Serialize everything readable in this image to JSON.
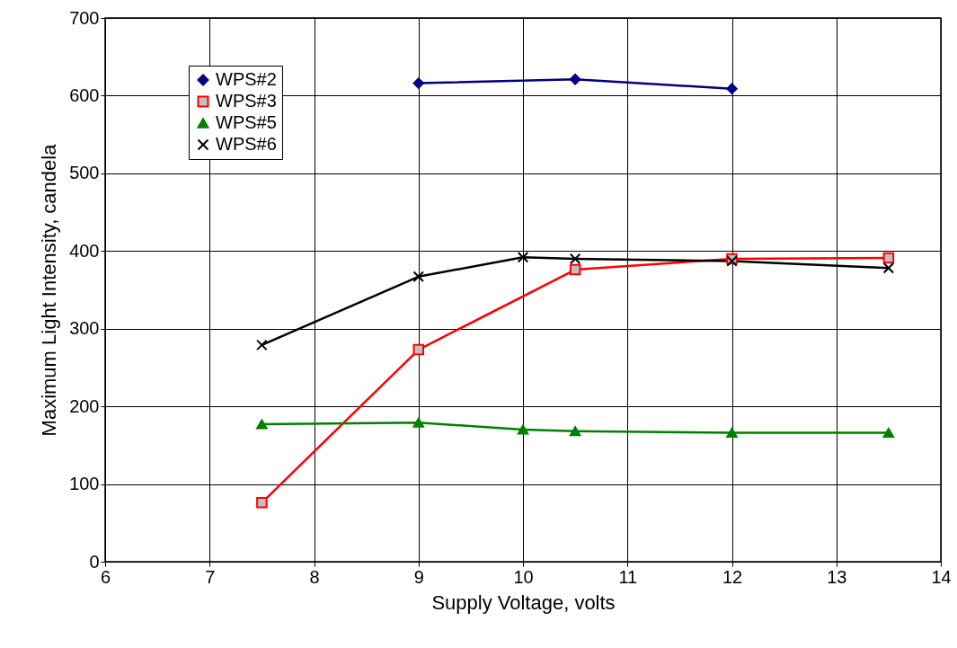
{
  "chart_data": {
    "type": "line",
    "xlabel": "Supply Voltage, volts",
    "ylabel": "Maximum Light Intensity, candela",
    "xlim": [
      6,
      14
    ],
    "xticks": [
      6,
      7,
      8,
      9,
      10,
      11,
      12,
      13,
      14
    ],
    "ylim": [
      0,
      700
    ],
    "yticks": [
      0,
      100,
      200,
      300,
      400,
      500,
      600,
      700
    ],
    "grid": true,
    "legend": "top left",
    "series": [
      {
        "name": "WPS#2",
        "color": "#000080",
        "marker": "diamond",
        "x": [
          9,
          10.5,
          12
        ],
        "values": [
          616,
          621,
          609
        ]
      },
      {
        "name": "WPS#3",
        "color": "#ff0000",
        "marker": "square",
        "x": [
          7.5,
          9,
          10.5,
          12,
          13.5
        ],
        "values": [
          76,
          273,
          376,
          390,
          391
        ]
      },
      {
        "name": "WPS#5",
        "color": "#008000",
        "marker": "triangle",
        "x": [
          7.5,
          9,
          10,
          10.5,
          12,
          13.5
        ],
        "values": [
          177,
          179,
          170,
          168,
          166,
          166
        ]
      },
      {
        "name": "WPS#6",
        "color": "#000000",
        "marker": "cross",
        "x": [
          7.5,
          9,
          10,
          10.5,
          12,
          13.5
        ],
        "values": [
          279,
          367,
          392,
          390,
          387,
          378
        ]
      }
    ]
  }
}
